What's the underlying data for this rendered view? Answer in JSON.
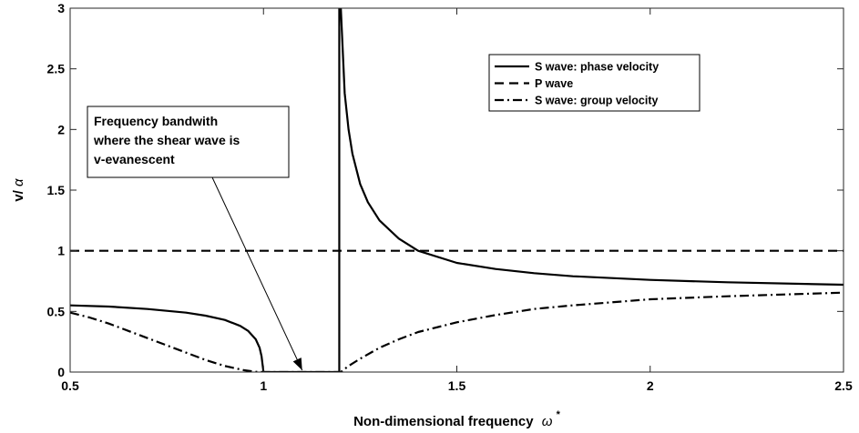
{
  "chart_data": {
    "type": "line",
    "xlabel": "Non-dimensional frequency",
    "xlabel_symbol": "ω",
    "xlabel_superscript": "*",
    "ylabel_prefix": "v/",
    "ylabel_symbol": "α",
    "xlim": [
      0.5,
      2.5
    ],
    "ylim": [
      0,
      3
    ],
    "xticks": [
      0.5,
      1,
      1.5,
      2,
      2.5
    ],
    "xtick_labels": [
      "0.5",
      "1",
      "1.5",
      "2",
      "2.5"
    ],
    "yticks": [
      0,
      0.5,
      1,
      1.5,
      2,
      2.5,
      3
    ],
    "ytick_labels": [
      "0",
      "0.5",
      "1",
      "1.5",
      "2",
      "2.5",
      "3"
    ],
    "grid": false,
    "legend_position": "top-right",
    "series": [
      {
        "name": "S wave: phase velocity",
        "style": "solid",
        "x": [
          0.5,
          0.6,
          0.7,
          0.8,
          0.85,
          0.9,
          0.94,
          0.96,
          0.98,
          0.99,
          0.995,
          1.0,
          1.05,
          1.1,
          1.15,
          1.19,
          1.196,
          1.196,
          1.2,
          1.21,
          1.22,
          1.23,
          1.25,
          1.27,
          1.3,
          1.35,
          1.4,
          1.5,
          1.6,
          1.7,
          1.8,
          2.0,
          2.2,
          2.5
        ],
        "y": [
          0.55,
          0.54,
          0.52,
          0.49,
          0.465,
          0.43,
          0.38,
          0.34,
          0.27,
          0.2,
          0.13,
          0.0,
          0.0,
          0.0,
          0.0,
          0.0,
          0.0,
          3.0,
          3.0,
          2.3,
          2.0,
          1.8,
          1.55,
          1.4,
          1.25,
          1.1,
          1.0,
          0.9,
          0.85,
          0.815,
          0.79,
          0.76,
          0.74,
          0.72
        ]
      },
      {
        "name": "P wave",
        "style": "dashed",
        "x": [
          0.5,
          2.5
        ],
        "y": [
          1.0,
          1.0
        ]
      },
      {
        "name": "S wave: group velocity",
        "style": "dashdot",
        "x": [
          0.5,
          0.55,
          0.6,
          0.65,
          0.7,
          0.75,
          0.8,
          0.85,
          0.9,
          0.95,
          0.98,
          1.0,
          1.1,
          1.19,
          1.2,
          1.22,
          1.25,
          1.3,
          1.35,
          1.4,
          1.5,
          1.6,
          1.7,
          1.8,
          2.0,
          2.2,
          2.5
        ],
        "y": [
          0.49,
          0.45,
          0.4,
          0.34,
          0.28,
          0.22,
          0.16,
          0.1,
          0.05,
          0.015,
          0.002,
          0.0,
          0.0,
          0.0,
          0.0,
          0.05,
          0.11,
          0.2,
          0.27,
          0.33,
          0.41,
          0.47,
          0.52,
          0.55,
          0.6,
          0.625,
          0.655
        ]
      }
    ],
    "annotations": [
      {
        "lines": [
          "Frequency bandwith",
          "where the shear wave is",
          "v-evanescent"
        ],
        "arrow_to": [
          1.1,
          0.0
        ]
      }
    ]
  }
}
